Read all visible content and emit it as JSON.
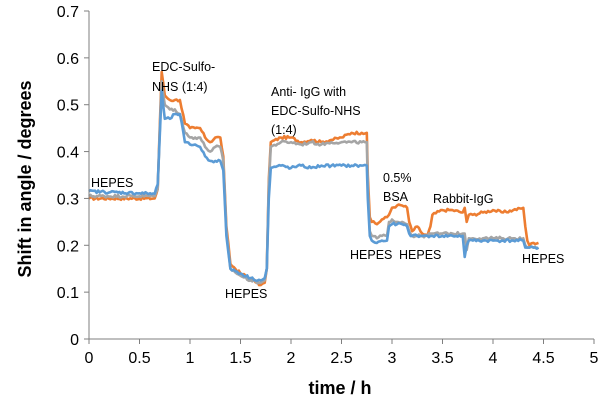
{
  "chart_data": {
    "type": "line",
    "title": "",
    "xlabel": "time / h",
    "ylabel": "Shift in angle / degrees",
    "xlim": [
      0,
      5
    ],
    "ylim": [
      0,
      0.7
    ],
    "xticks": [
      "0",
      "0.5",
      "1",
      "1.5",
      "2",
      "2.5",
      "3",
      "3.5",
      "4",
      "4.5",
      "5"
    ],
    "yticks": [
      "0",
      "0.1",
      "0.2",
      "0.3",
      "0.4",
      "0.5",
      "0.6",
      "0.7"
    ],
    "grid": false,
    "legend": "none",
    "annotations": [
      "HEPES",
      "EDC-Sulfo-",
      "NHS (1:4)",
      "Anti- IgG with",
      "EDC-Sulfo-NHS",
      "(1:4)",
      "HEPES",
      "0.5%",
      "BSA",
      "Rabbit-IgG",
      "HEPES",
      "HEPES",
      "HEPES"
    ],
    "series": [
      {
        "color": "#ED7D31",
        "x": [
          0.0,
          0.65,
          0.68,
          0.7,
          0.72,
          0.75,
          0.8,
          0.85,
          0.9,
          0.95,
          1.0,
          1.05,
          1.1,
          1.15,
          1.2,
          1.25,
          1.3,
          1.33,
          1.36,
          1.4,
          1.5,
          1.6,
          1.7,
          1.74,
          1.76,
          1.78,
          1.8,
          1.9,
          2.0,
          2.1,
          2.2,
          2.3,
          2.4,
          2.5,
          2.6,
          2.7,
          2.75,
          2.76,
          2.78,
          2.8,
          2.85,
          2.9,
          2.95,
          2.97,
          3.0,
          3.05,
          3.1,
          3.15,
          3.17,
          3.2,
          3.25,
          3.3,
          3.35,
          3.38,
          3.4,
          3.5,
          3.6,
          3.7,
          3.72,
          3.74,
          3.76,
          3.8,
          3.9,
          4.0,
          4.1,
          4.2,
          4.3,
          4.32,
          4.34,
          4.36,
          4.4,
          4.45
        ],
        "y": [
          0.3,
          0.3,
          0.32,
          0.45,
          0.57,
          0.52,
          0.51,
          0.51,
          0.51,
          0.46,
          0.45,
          0.45,
          0.45,
          0.43,
          0.42,
          0.43,
          0.43,
          0.39,
          0.24,
          0.16,
          0.14,
          0.13,
          0.115,
          0.12,
          0.15,
          0.34,
          0.42,
          0.43,
          0.43,
          0.42,
          0.425,
          0.42,
          0.425,
          0.43,
          0.44,
          0.44,
          0.44,
          0.35,
          0.26,
          0.25,
          0.245,
          0.255,
          0.26,
          0.265,
          0.28,
          0.285,
          0.285,
          0.28,
          0.25,
          0.23,
          0.24,
          0.225,
          0.22,
          0.24,
          0.265,
          0.275,
          0.275,
          0.27,
          0.28,
          0.25,
          0.265,
          0.265,
          0.27,
          0.275,
          0.27,
          0.275,
          0.28,
          0.24,
          0.21,
          0.2,
          0.205,
          0.205
        ]
      },
      {
        "color": "#A5A5A5",
        "x": [
          0.0,
          0.65,
          0.68,
          0.7,
          0.72,
          0.75,
          0.8,
          0.85,
          0.9,
          0.95,
          1.0,
          1.05,
          1.1,
          1.15,
          1.2,
          1.25,
          1.3,
          1.33,
          1.36,
          1.4,
          1.5,
          1.6,
          1.7,
          1.74,
          1.76,
          1.78,
          1.8,
          1.9,
          2.0,
          2.1,
          2.2,
          2.3,
          2.4,
          2.5,
          2.6,
          2.7,
          2.75,
          2.76,
          2.78,
          2.8,
          2.85,
          2.9,
          2.95,
          2.97,
          3.0,
          3.05,
          3.1,
          3.15,
          3.17,
          3.2,
          3.25,
          3.3,
          3.35,
          3.38,
          3.4,
          3.5,
          3.6,
          3.7,
          3.72,
          3.74,
          3.76,
          3.8,
          3.9,
          4.0,
          4.1,
          4.2,
          4.3,
          4.32,
          4.34,
          4.36,
          4.4,
          4.45
        ],
        "y": [
          0.305,
          0.305,
          0.32,
          0.44,
          0.55,
          0.5,
          0.49,
          0.49,
          0.48,
          0.44,
          0.43,
          0.43,
          0.43,
          0.41,
          0.4,
          0.41,
          0.41,
          0.38,
          0.23,
          0.15,
          0.135,
          0.125,
          0.12,
          0.125,
          0.15,
          0.33,
          0.41,
          0.42,
          0.42,
          0.415,
          0.42,
          0.415,
          0.42,
          0.42,
          0.42,
          0.42,
          0.42,
          0.33,
          0.23,
          0.22,
          0.215,
          0.22,
          0.22,
          0.25,
          0.255,
          0.25,
          0.25,
          0.245,
          0.23,
          0.22,
          0.22,
          0.22,
          0.22,
          0.225,
          0.225,
          0.225,
          0.225,
          0.225,
          0.225,
          0.19,
          0.215,
          0.215,
          0.215,
          0.215,
          0.215,
          0.215,
          0.215,
          0.2,
          0.195,
          0.195,
          0.195,
          0.195
        ]
      },
      {
        "color": "#5B9BD5",
        "x": [
          0.0,
          0.65,
          0.68,
          0.7,
          0.72,
          0.75,
          0.8,
          0.85,
          0.9,
          0.95,
          1.0,
          1.05,
          1.1,
          1.15,
          1.2,
          1.25,
          1.3,
          1.33,
          1.36,
          1.4,
          1.5,
          1.6,
          1.7,
          1.74,
          1.76,
          1.78,
          1.8,
          1.9,
          2.0,
          2.1,
          2.2,
          2.3,
          2.4,
          2.5,
          2.6,
          2.7,
          2.75,
          2.76,
          2.78,
          2.8,
          2.85,
          2.9,
          2.95,
          2.97,
          3.0,
          3.05,
          3.1,
          3.15,
          3.17,
          3.2,
          3.25,
          3.3,
          3.35,
          3.38,
          3.4,
          3.5,
          3.6,
          3.7,
          3.72,
          3.74,
          3.76,
          3.8,
          3.9,
          4.0,
          4.1,
          4.2,
          4.3,
          4.32,
          4.34,
          4.36,
          4.4,
          4.45
        ],
        "y": [
          0.315,
          0.31,
          0.33,
          0.43,
          0.53,
          0.47,
          0.47,
          0.48,
          0.48,
          0.42,
          0.415,
          0.415,
          0.41,
          0.39,
          0.38,
          0.38,
          0.38,
          0.36,
          0.22,
          0.15,
          0.14,
          0.13,
          0.125,
          0.13,
          0.15,
          0.3,
          0.365,
          0.37,
          0.365,
          0.37,
          0.365,
          0.37,
          0.37,
          0.37,
          0.37,
          0.37,
          0.37,
          0.3,
          0.22,
          0.21,
          0.205,
          0.21,
          0.21,
          0.24,
          0.245,
          0.245,
          0.245,
          0.24,
          0.225,
          0.22,
          0.22,
          0.22,
          0.22,
          0.22,
          0.22,
          0.22,
          0.22,
          0.22,
          0.175,
          0.2,
          0.21,
          0.21,
          0.21,
          0.21,
          0.21,
          0.21,
          0.21,
          0.195,
          0.195,
          0.195,
          0.195,
          0.195
        ]
      }
    ]
  }
}
